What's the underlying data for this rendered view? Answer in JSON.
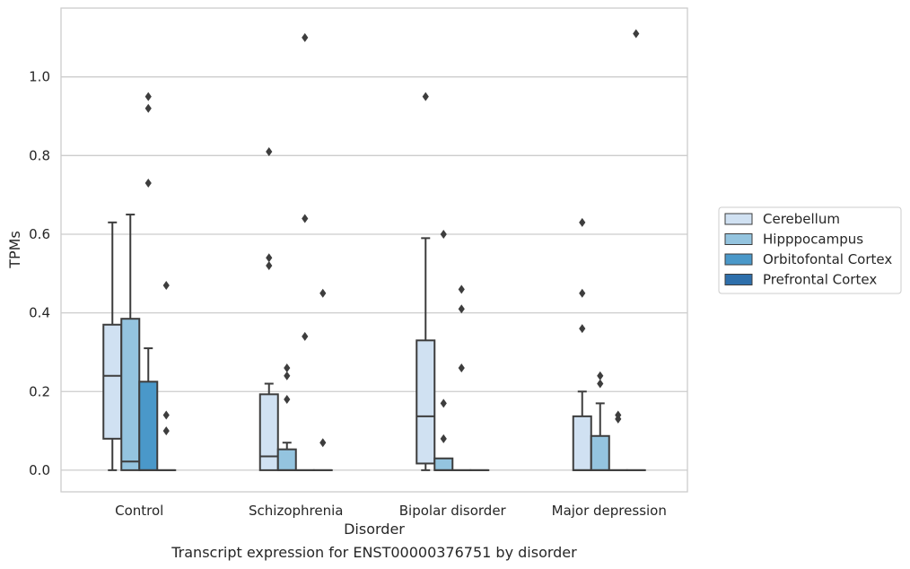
{
  "caption": "Transcript expression for ENST00000376751 by disorder",
  "chart_data": {
    "type": "box",
    "xlabel": "Disorder",
    "ylabel": "TPMs",
    "ylim": [
      -0.055,
      1.175
    ],
    "yticks": [
      "0.0",
      "0.2",
      "0.4",
      "0.6",
      "0.8",
      "1.0"
    ],
    "grid": true,
    "legend_position": "right",
    "categories": [
      "Control",
      "Schizophrenia",
      "Bipolar disorder",
      "Major depression"
    ],
    "series": [
      {
        "name": "Cerebellum",
        "color": "#d0e1f2",
        "boxes": [
          {
            "whislo": 0.0,
            "q1": 0.08,
            "med": 0.24,
            "q3": 0.37,
            "whishi": 0.63,
            "fliers": []
          },
          {
            "whislo": 0.0,
            "q1": 0.0,
            "med": 0.035,
            "q3": 0.193,
            "whishi": 0.22,
            "fliers": [
              0.52,
              0.54,
              0.81
            ]
          },
          {
            "whislo": 0.0,
            "q1": 0.017,
            "med": 0.137,
            "q3": 0.33,
            "whishi": 0.59,
            "fliers": [
              0.95
            ]
          },
          {
            "whislo": 0.0,
            "q1": 0.0,
            "med": 0.0,
            "q3": 0.137,
            "whishi": 0.2,
            "fliers": [
              0.36,
              0.45,
              0.63
            ]
          }
        ]
      },
      {
        "name": "Hipppocampus",
        "color": "#94c4df",
        "boxes": [
          {
            "whislo": 0.0,
            "q1": 0.0,
            "med": 0.022,
            "q3": 0.385,
            "whishi": 0.65,
            "fliers": []
          },
          {
            "whislo": 0.0,
            "q1": 0.0,
            "med": 0.0,
            "q3": 0.053,
            "whishi": 0.07,
            "fliers": [
              0.18,
              0.24,
              0.26
            ]
          },
          {
            "whislo": 0.0,
            "q1": 0.0,
            "med": 0.0,
            "q3": 0.03,
            "whishi": 0.03,
            "fliers": [
              0.08,
              0.17,
              0.6
            ]
          },
          {
            "whislo": 0.0,
            "q1": 0.0,
            "med": 0.0,
            "q3": 0.087,
            "whishi": 0.17,
            "fliers": [
              0.22,
              0.24
            ]
          }
        ]
      },
      {
        "name": "Orbitofontal Cortex",
        "color": "#4a98c9",
        "boxes": [
          {
            "whislo": 0.0,
            "q1": 0.0,
            "med": 0.0,
            "q3": 0.225,
            "whishi": 0.31,
            "fliers": [
              0.73,
              0.92,
              0.95
            ]
          },
          {
            "whislo": 0.0,
            "q1": 0.0,
            "med": 0.0,
            "q3": 0.0,
            "whishi": 0.0,
            "fliers": [
              0.34,
              0.64,
              1.1
            ]
          },
          {
            "whislo": 0.0,
            "q1": 0.0,
            "med": 0.0,
            "q3": 0.0,
            "whishi": 0.0,
            "fliers": [
              0.26,
              0.41,
              0.46
            ]
          },
          {
            "whislo": 0.0,
            "q1": 0.0,
            "med": 0.0,
            "q3": 0.0,
            "whishi": 0.0,
            "fliers": [
              0.13,
              0.14
            ]
          }
        ]
      },
      {
        "name": "Prefrontal Cortex",
        "color": "#2e6fab",
        "boxes": [
          {
            "whislo": 0.0,
            "q1": 0.0,
            "med": 0.0,
            "q3": 0.0,
            "whishi": 0.0,
            "fliers": [
              0.1,
              0.14,
              0.47
            ]
          },
          {
            "whislo": 0.0,
            "q1": 0.0,
            "med": 0.0,
            "q3": 0.0,
            "whishi": 0.0,
            "fliers": [
              0.07,
              0.45
            ]
          },
          {
            "whislo": 0.0,
            "q1": 0.0,
            "med": 0.0,
            "q3": 0.0,
            "whishi": 0.0,
            "fliers": []
          },
          {
            "whislo": 0.0,
            "q1": 0.0,
            "med": 0.0,
            "q3": 0.0,
            "whishi": 0.0,
            "fliers": [
              1.11
            ]
          }
        ]
      }
    ]
  }
}
